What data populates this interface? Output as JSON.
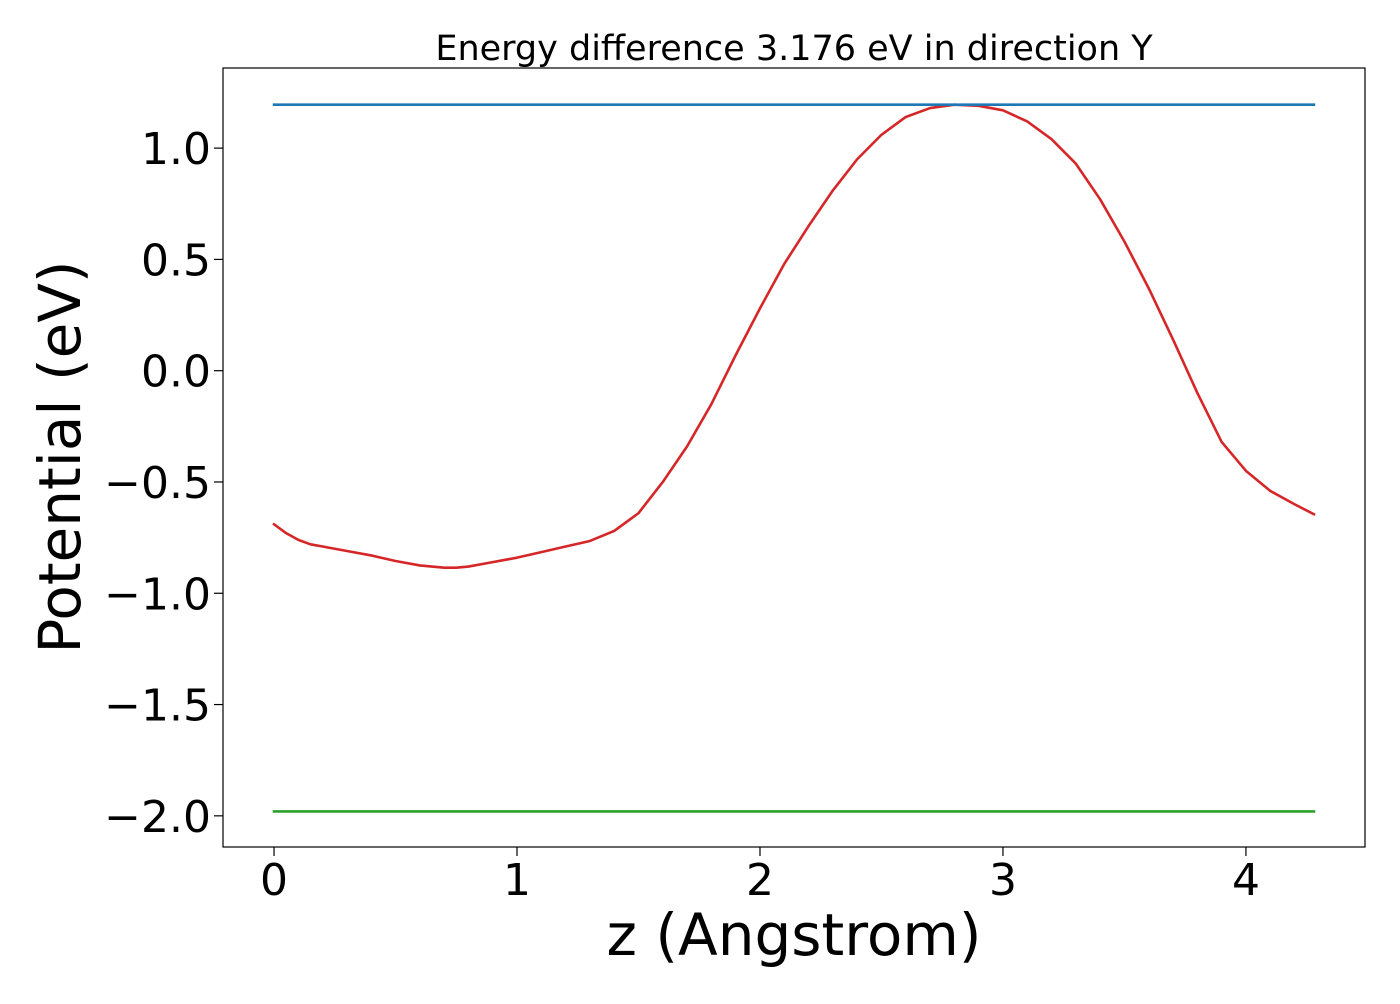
{
  "chart_data": {
    "type": "line",
    "title": "Energy difference 3.176 eV in direction Y",
    "xlabel": "z (Angstrom)",
    "ylabel": "Potential (eV)",
    "xlim": [
      -0.21,
      4.49
    ],
    "ylim": [
      -2.14,
      1.36
    ],
    "xticks": [
      0,
      1,
      2,
      3,
      4
    ],
    "xtick_labels": [
      "0",
      "1",
      "2",
      "3",
      "4"
    ],
    "yticks": [
      1.0,
      0.5,
      0.0,
      -0.5,
      -1.0,
      -1.5,
      -2.0
    ],
    "ytick_labels": [
      "1.0",
      "0.5",
      "0.0",
      "−0.5",
      "−1.0",
      "−1.5",
      "−2.0"
    ],
    "grid": false,
    "series": [
      {
        "color": "#d62728",
        "x": [
          0.0,
          0.05,
          0.1,
          0.15,
          0.2,
          0.3,
          0.4,
          0.5,
          0.6,
          0.7,
          0.75,
          0.8,
          0.9,
          1.0,
          1.1,
          1.2,
          1.3,
          1.4,
          1.5,
          1.6,
          1.7,
          1.8,
          1.9,
          2.0,
          2.1,
          2.2,
          2.3,
          2.4,
          2.5,
          2.6,
          2.7,
          2.8,
          2.9,
          3.0,
          3.1,
          3.2,
          3.3,
          3.4,
          3.5,
          3.6,
          3.7,
          3.8,
          3.9,
          4.0,
          4.1,
          4.2,
          4.28
        ],
        "y": [
          -0.69,
          -0.73,
          -0.76,
          -0.78,
          -0.79,
          -0.81,
          -0.83,
          -0.855,
          -0.875,
          -0.885,
          -0.885,
          -0.88,
          -0.86,
          -0.84,
          -0.815,
          -0.79,
          -0.765,
          -0.72,
          -0.64,
          -0.5,
          -0.34,
          -0.15,
          0.07,
          0.28,
          0.48,
          0.65,
          0.81,
          0.95,
          1.06,
          1.14,
          1.18,
          1.195,
          1.19,
          1.17,
          1.12,
          1.04,
          0.93,
          0.77,
          0.58,
          0.37,
          0.14,
          -0.1,
          -0.32,
          -0.45,
          -0.54,
          -0.6,
          -0.645
        ]
      },
      {
        "color": "#1f77b4",
        "x": [
          0.0,
          4.28
        ],
        "y": [
          1.195,
          1.195
        ]
      },
      {
        "color": "#2ca02c",
        "x": [
          0.0,
          4.28
        ],
        "y": [
          -1.98,
          -1.98
        ]
      }
    ]
  }
}
